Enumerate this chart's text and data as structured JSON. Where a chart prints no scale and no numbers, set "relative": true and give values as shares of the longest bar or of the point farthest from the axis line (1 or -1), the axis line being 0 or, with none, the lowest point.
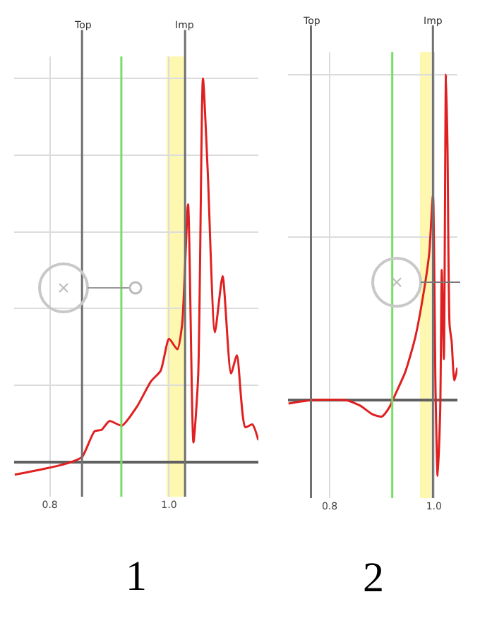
{
  "chart_data": [
    {
      "type": "line",
      "relative": true,
      "annotations": [
        "1"
      ],
      "x": [
        0.741,
        0.796,
        0.836,
        0.854,
        0.875,
        0.887,
        0.9,
        0.921,
        0.946,
        0.97,
        0.986,
        1.0,
        1.014,
        1.022,
        1.032,
        1.041,
        1.049,
        1.057,
        1.065,
        1.077,
        1.09,
        1.104,
        1.114,
        1.128,
        1.14,
        1.15
      ],
      "series": [
        {
          "color": "#e02020",
          "values": [
            -0.033,
            -0.016,
            0,
            0.013,
            0.08,
            0.084,
            0.107,
            0.095,
            0.144,
            0.211,
            0.238,
            0.321,
            0.294,
            0.358,
            0.672,
            0.051,
            0.225,
            1.0,
            0.759,
            0.338,
            0.485,
            0.231,
            0.278,
            0.091,
            0.098,
            0.057
          ]
        }
      ],
      "xlim": [
        0.74,
        1.15
      ],
      "xticks": [
        0.8,
        {
          "value": 1,
          "label": "1.0"
        }
      ],
      "tick_labels": "x",
      "grid": true,
      "marker": "none",
      "ref_lines": [
        {
          "axis": "x",
          "value": 0.854,
          "label": "Top",
          "color": "#707070"
        },
        {
          "axis": "x",
          "value": 0.92,
          "color": "#77dd66"
        },
        {
          "axis": "x",
          "value": 1.027,
          "label": "Imp",
          "color": "#707070"
        }
      ],
      "bands": [
        {
          "axis": "x",
          "from": 0.996,
          "to": 1.028,
          "color": "#fdf59c"
        }
      ]
    },
    {
      "type": "line",
      "relative": true,
      "annotations": [
        "2"
      ],
      "x": [
        0.721,
        0.764,
        0.832,
        0.859,
        0.882,
        0.9,
        0.914,
        0.927,
        0.945,
        0.964,
        0.982,
        0.991,
        0.998,
        1.003,
        1.007,
        1.012,
        1.015,
        1.019,
        1.023,
        1.026,
        1.03,
        1.034,
        1.039,
        1.045
      ],
      "series": [
        {
          "color": "#e02020",
          "values": [
            -0.01,
            0,
            0,
            -0.017,
            -0.043,
            -0.05,
            -0.023,
            0.022,
            0.087,
            0.192,
            0.348,
            0.452,
            0.628,
            0.035,
            -0.232,
            -0.03,
            0.4,
            0.126,
            1.0,
            0.778,
            0.231,
            0.179,
            0.061,
            0.1
          ]
        }
      ],
      "xlim": [
        0.72,
        1.045
      ],
      "xticks": [
        0.8,
        {
          "value": 1,
          "label": "1.0"
        }
      ],
      "tick_labels": "x",
      "grid": true,
      "marker": "none",
      "ref_lines": [
        {
          "axis": "x",
          "value": 0.764,
          "label": "Top",
          "color": "#707070"
        },
        {
          "axis": "x",
          "value": 0.92,
          "color": "#77dd66"
        },
        {
          "axis": "x",
          "value": 0.998,
          "label": "Imp",
          "color": "#707070"
        }
      ],
      "bands": [
        {
          "axis": "x",
          "from": 0.973,
          "to": 0.995,
          "color": "#fdf59c"
        }
      ]
    }
  ]
}
